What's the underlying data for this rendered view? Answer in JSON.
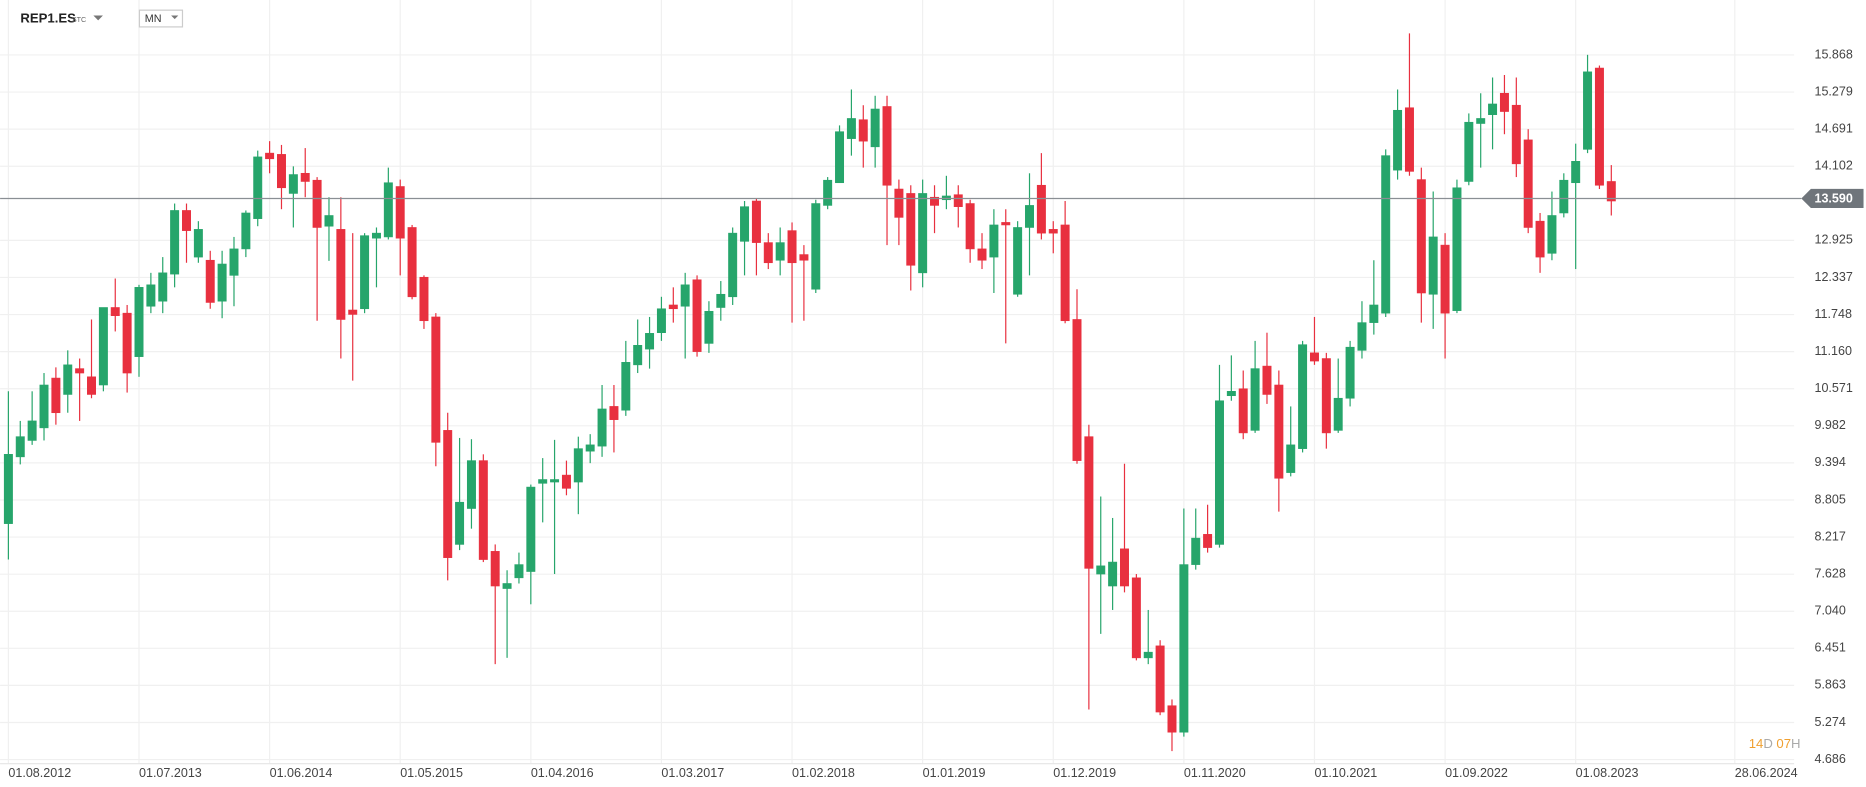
{
  "header": {
    "symbol": "REP1.ES",
    "suffix": "STC",
    "interval": "MN"
  },
  "countdown": {
    "days": "14",
    "days_unit": "D",
    "hours": "07",
    "hours_unit": "H"
  },
  "chart_data": {
    "type": "candlestick",
    "up_color": "#26a56b",
    "down_color": "#e8303f",
    "grid": true,
    "last_price": {
      "value": 13.59,
      "label": "13.590"
    },
    "ylim": [
      4.63,
      16.74
    ],
    "yticks": [
      15.868,
      15.279,
      14.691,
      14.102,
      12.925,
      12.337,
      11.748,
      {
        "value": 11.16,
        "label": "11.160"
      },
      10.571,
      9.982,
      9.394,
      8.805,
      8.217,
      7.628,
      {
        "value": 7.04,
        "label": "7.040"
      },
      6.451,
      5.863,
      5.274,
      4.686
    ],
    "xlim": [
      -0.7,
      150.4
    ],
    "xticks": [
      {
        "value": 0,
        "label": "01.08.2012"
      },
      {
        "value": 11,
        "label": "01.07.2013"
      },
      {
        "value": 22,
        "label": "01.06.2014"
      },
      {
        "value": 33,
        "label": "01.05.2015"
      },
      {
        "value": 44,
        "label": "01.04.2016"
      },
      {
        "value": 55,
        "label": "01.03.2017"
      },
      {
        "value": 66,
        "label": "01.02.2018"
      },
      {
        "value": 77,
        "label": "01.01.2019"
      },
      {
        "value": 88,
        "label": "01.12.2019"
      },
      {
        "value": 99,
        "label": "01.11.2020"
      },
      {
        "value": 110,
        "label": "01.10.2021"
      },
      {
        "value": 121,
        "label": "01.09.2022"
      },
      {
        "value": 132,
        "label": "01.08.2023"
      },
      {
        "value": 145.4,
        "label": "28.06.2024"
      }
    ],
    "open": [
      8.43,
      9.49,
      9.75,
      9.95,
      10.74,
      10.48,
      10.89,
      10.76,
      10.63,
      11.86,
      11.77,
      11.08,
      11.88,
      11.96,
      12.39,
      13.4,
      12.66,
      12.61,
      11.96,
      12.37,
      12.79,
      13.27,
      14.31,
      14.29,
      13.67,
      13.99,
      13.88,
      13.15,
      13.1,
      11.82,
      11.84,
      12.96,
      12.98,
      13.78,
      13.13,
      12.34,
      11.71,
      9.91,
      8.1,
      8.67,
      9.43,
      7.99,
      7.4,
      7.57,
      7.67,
      9.07,
      9.09,
      9.2,
      9.09,
      9.58,
      9.66,
      10.29,
      10.23,
      10.95,
      11.2,
      11.46,
      11.9,
      11.88,
      12.3,
      11.29,
      11.86,
      12.03,
      12.91,
      13.55,
      12.89,
      12.61,
      13.08,
      12.7,
      12.15,
      13.48,
      13.84,
      14.54,
      14.84,
      14.41,
      15.05,
      13.74,
      13.67,
      12.41,
      13.61,
      13.57,
      13.65,
      13.51,
      12.79,
      12.66,
      13.21,
      12.07,
      13.13,
      13.8,
      13.1,
      13.17,
      11.67,
      9.81,
      7.63,
      7.44,
      8.03,
      7.57,
      6.3,
      6.49,
      5.54,
      5.12,
      7.78,
      8.26,
      8.1,
      10.46,
      10.57,
      9.91,
      10.93,
      10.63,
      9.24,
      9.62,
      11.14,
      11.05,
      9.91,
      10.42,
      11.18,
      11.62,
      11.77,
      14.04,
      15.03,
      13.89,
      12.07,
      12.85,
      11.81,
      13.86,
      14.78,
      14.92,
      15.26,
      15.07,
      14.52,
      13.23,
      12.72,
      13.36,
      13.84,
      14.37,
      15.66,
      13.86
    ],
    "high": [
      10.53,
      10.06,
      10.53,
      10.82,
      10.91,
      11.18,
      11.05,
      11.67,
      11.86,
      12.32,
      11.9,
      12.22,
      12.41,
      12.66,
      13.51,
      13.51,
      13.23,
      12.76,
      12.76,
      12.98,
      13.4,
      14.35,
      14.5,
      14.44,
      14.1,
      14.39,
      13.93,
      13.61,
      13.61,
      13.04,
      13.04,
      13.13,
      14.08,
      13.89,
      13.17,
      12.37,
      11.77,
      10.19,
      9.79,
      9.77,
      9.53,
      8.1,
      7.69,
      7.97,
      9.05,
      9.47,
      9.76,
      9.43,
      9.81,
      9.85,
      10.63,
      10.63,
      11.33,
      11.67,
      11.71,
      12.03,
      12.18,
      12.41,
      12.37,
      11.96,
      12.28,
      13.13,
      13.55,
      13.59,
      13.04,
      13.13,
      13.21,
      12.85,
      13.57,
      13.93,
      14.75,
      15.32,
      15.07,
      15.22,
      15.22,
      13.89,
      13.8,
      13.89,
      13.8,
      13.95,
      13.8,
      13.57,
      13.04,
      13.42,
      13.42,
      13.23,
      13.99,
      14.31,
      13.23,
      13.55,
      12.15,
      10.0,
      8.86,
      8.52,
      9.38,
      7.63,
      7.06,
      6.58,
      5.64,
      8.67,
      8.67,
      8.73,
      10.95,
      11.1,
      10.86,
      11.33,
      11.46,
      10.86,
      10.29,
      11.33,
      11.71,
      11.14,
      11.05,
      11.33,
      11.96,
      12.61,
      14.37,
      15.32,
      16.21,
      14.08,
      13.7,
      13.04,
      13.89,
      14.94,
      15.26,
      15.51,
      15.55,
      15.51,
      14.69,
      13.36,
      13.7,
      13.99,
      14.46,
      15.87,
      15.7,
      14.12
    ],
    "low": [
      7.86,
      9.37,
      9.68,
      9.75,
      10.0,
      10.19,
      10.06,
      10.42,
      10.53,
      11.48,
      10.51,
      10.76,
      11.77,
      11.77,
      12.18,
      12.57,
      12.57,
      11.84,
      11.69,
      11.88,
      12.66,
      13.15,
      13.99,
      13.42,
      13.13,
      13.61,
      11.65,
      12.6,
      11.05,
      10.7,
      11.77,
      12.18,
      12.94,
      12.37,
      11.99,
      11.52,
      9.34,
      7.53,
      8.01,
      8.35,
      7.82,
      6.2,
      6.3,
      7.48,
      7.15,
      8.45,
      7.63,
      8.88,
      8.58,
      9.39,
      9.49,
      9.56,
      10.14,
      10.82,
      10.89,
      11.33,
      11.62,
      11.05,
      11.08,
      11.14,
      11.65,
      11.9,
      12.37,
      12.37,
      12.47,
      12.37,
      11.62,
      11.65,
      12.09,
      13.42,
      13.84,
      14.27,
      14.08,
      14.08,
      12.85,
      12.85,
      12.13,
      12.18,
      13.04,
      13.42,
      13.13,
      12.57,
      12.47,
      12.09,
      11.29,
      12.03,
      12.37,
      12.94,
      12.72,
      11.61,
      9.38,
      5.48,
      6.68,
      7.06,
      7.34,
      6.26,
      6.2,
      5.39,
      4.82,
      5.05,
      7.7,
      7.97,
      8.05,
      10.38,
      9.77,
      9.87,
      10.33,
      8.62,
      9.18,
      9.56,
      10.95,
      9.62,
      9.87,
      10.29,
      11.05,
      11.43,
      11.71,
      13.89,
      13.95,
      11.62,
      11.52,
      11.05,
      11.77,
      13.8,
      14.08,
      14.37,
      14.61,
      13.93,
      13.04,
      12.41,
      12.61,
      13.29,
      12.47,
      14.31,
      13.74,
      13.32
    ],
    "close": [
      9.53,
      9.81,
      10.06,
      10.63,
      10.19,
      10.95,
      10.82,
      10.48,
      11.86,
      11.73,
      10.82,
      12.18,
      12.22,
      12.41,
      13.4,
      13.08,
      13.1,
      11.94,
      12.55,
      12.79,
      13.36,
      14.25,
      14.22,
      13.76,
      13.97,
      13.86,
      13.13,
      13.32,
      11.67,
      11.75,
      13.0,
      13.04,
      13.84,
      12.96,
      12.03,
      11.65,
      9.72,
      7.89,
      8.77,
      9.43,
      7.86,
      7.44,
      7.48,
      7.78,
      9.01,
      9.13,
      9.13,
      8.99,
      9.62,
      9.68,
      10.25,
      10.08,
      10.99,
      11.26,
      11.45,
      11.84,
      11.84,
      12.22,
      11.16,
      11.8,
      12.07,
      13.04,
      13.46,
      12.89,
      12.57,
      12.89,
      12.57,
      12.61,
      13.51,
      13.88,
      14.65,
      14.86,
      14.5,
      15.01,
      13.8,
      13.29,
      12.53,
      13.67,
      13.48,
      13.63,
      13.46,
      12.79,
      12.61,
      13.17,
      13.17,
      13.13,
      13.48,
      13.04,
      13.04,
      11.65,
      9.43,
      7.72,
      7.76,
      7.82,
      7.44,
      6.3,
      6.39,
      5.44,
      5.12,
      7.78,
      8.2,
      8.05,
      10.38,
      10.53,
      9.87,
      10.89,
      10.48,
      9.15,
      9.68,
      11.27,
      11.01,
      9.87,
      10.42,
      11.23,
      11.62,
      11.9,
      14.27,
      14.99,
      14.02,
      12.09,
      12.98,
      11.77,
      13.76,
      14.8,
      14.86,
      15.09,
      14.97,
      14.14,
      13.13,
      12.66,
      13.32,
      13.88,
      14.18,
      15.6,
      13.8,
      13.55
    ]
  }
}
